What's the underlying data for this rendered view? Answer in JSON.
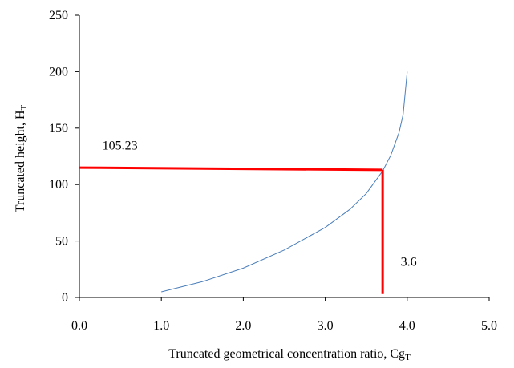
{
  "chart_data": {
    "type": "line",
    "title": "",
    "xlabel": "Truncated geometrical concentration ratio, Cg",
    "xlabel_sub": "T",
    "ylabel": "Truncated height, H",
    "ylabel_sub": "T",
    "xlim": [
      0.0,
      5.0
    ],
    "ylim": [
      0,
      250
    ],
    "x_ticks": [
      "0.0",
      "1.0",
      "2.0",
      "3.0",
      "4.0",
      "5.0"
    ],
    "y_ticks": [
      "0",
      "50",
      "100",
      "150",
      "200",
      "250"
    ],
    "grid": false,
    "series": [
      {
        "color": "#4a7ebb",
        "x": [
          1.0,
          1.5,
          2.0,
          2.5,
          3.0,
          3.3,
          3.5,
          3.7,
          3.8,
          3.9,
          3.95,
          4.0
        ],
        "y": [
          5,
          14,
          26,
          42,
          62,
          78,
          92,
          112,
          126,
          146,
          162,
          200
        ]
      }
    ],
    "annotations": [
      {
        "label": "105.23",
        "color": "#ff0000",
        "segment": {
          "x": [
            0.0,
            3.7
          ],
          "y": [
            115,
            113
          ]
        },
        "text_at": {
          "x": 0.28,
          "y": 131
        }
      },
      {
        "label": "3.6",
        "color": "#ff0000",
        "segment": {
          "x": [
            3.7,
            3.7
          ],
          "y": [
            113,
            3
          ]
        },
        "text_at": {
          "x": 3.92,
          "y": 28
        }
      }
    ]
  }
}
